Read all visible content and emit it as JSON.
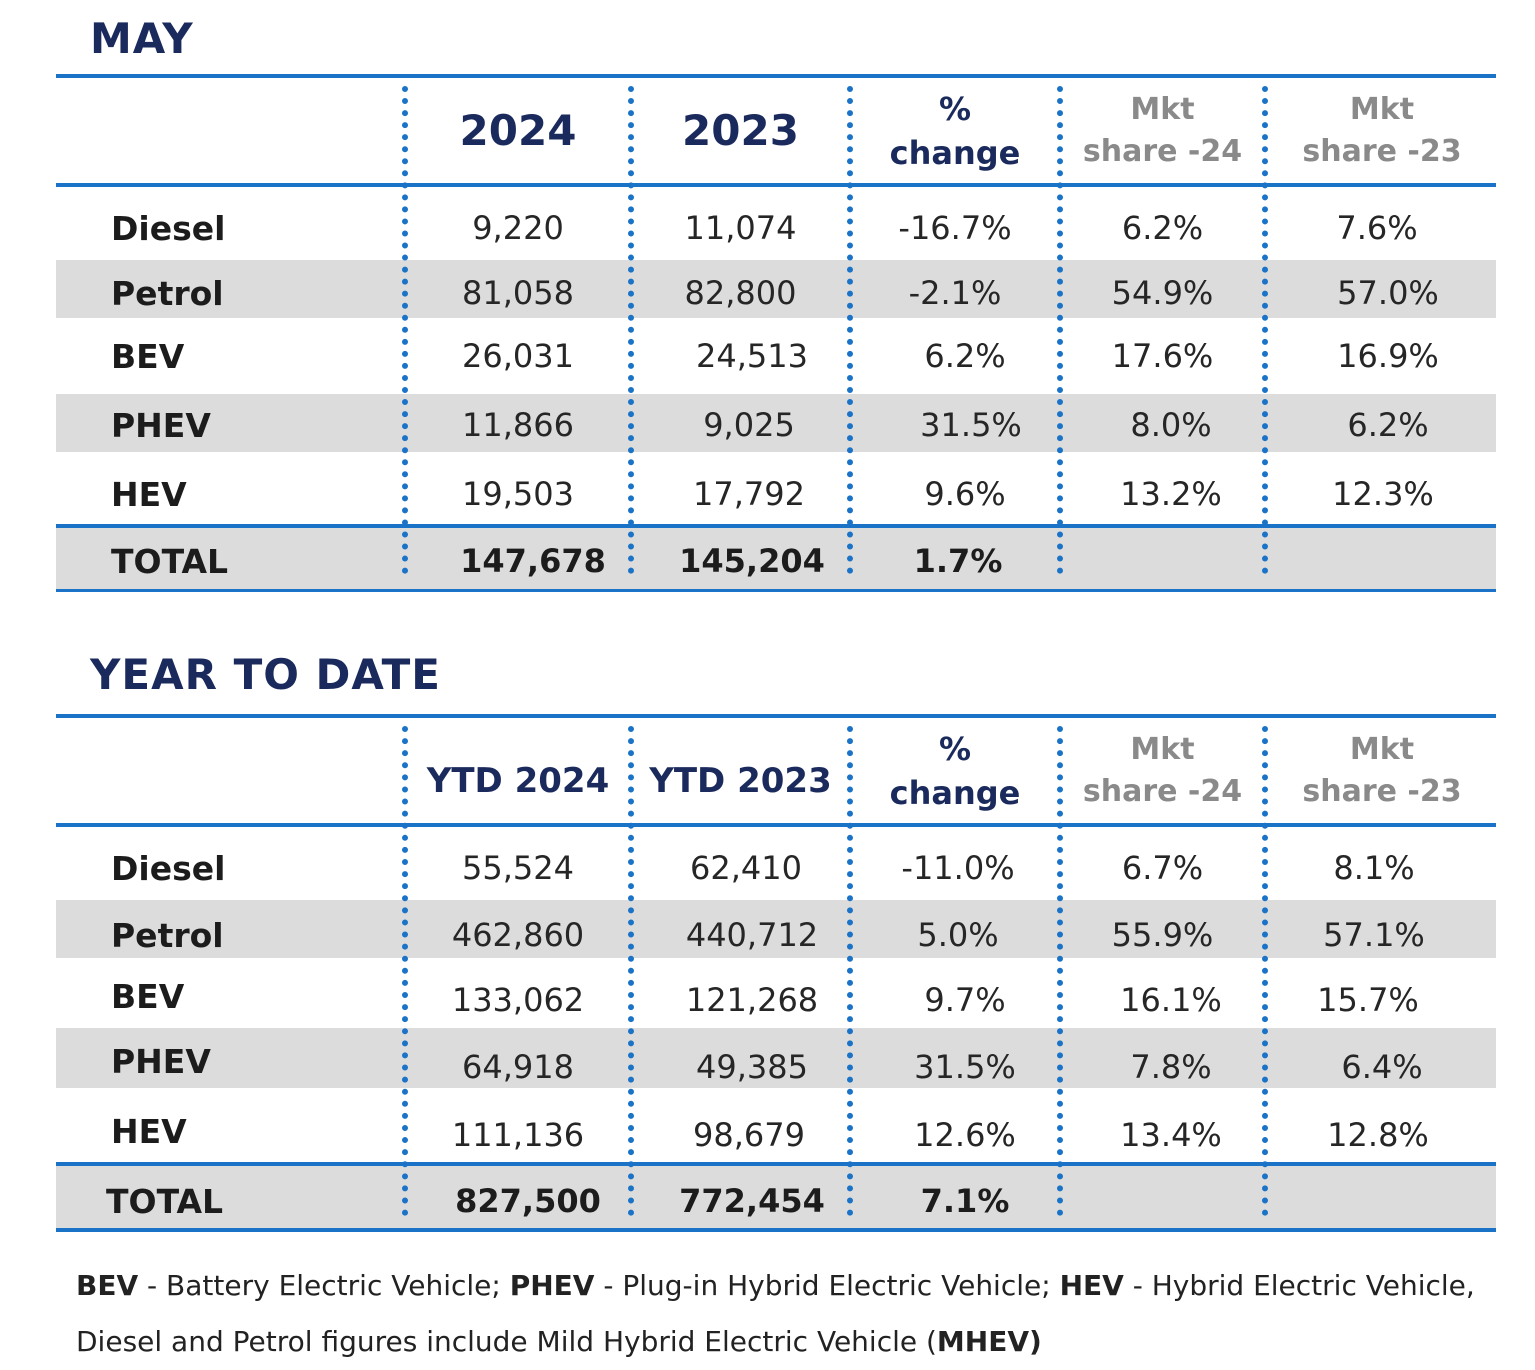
{
  "sections": [
    {
      "title": "MAY",
      "headers": {
        "col1": "2024",
        "col2": "2023",
        "pct_line1": "%",
        "pct_line2": "change",
        "mkt24_line1": "Mkt",
        "mkt24_line2": "share -24",
        "mkt23_line1": "Mkt",
        "mkt23_line2": "share -23"
      },
      "rows": [
        {
          "label": "Diesel",
          "v2024": "9,220",
          "v2023": "11,074",
          "change": "-16.7%",
          "share24": "6.2%",
          "share23": "7.6%"
        },
        {
          "label": "Petrol",
          "v2024": "81,058",
          "v2023": "82,800",
          "change": "-2.1%",
          "share24": "54.9%",
          "share23": "57.0%"
        },
        {
          "label": "BEV",
          "v2024": "26,031",
          "v2023": "24,513",
          "change": "6.2%",
          "share24": "17.6%",
          "share23": "16.9%"
        },
        {
          "label": "PHEV",
          "v2024": "11,866",
          "v2023": "9,025",
          "change": "31.5%",
          "share24": "8.0%",
          "share23": "6.2%"
        },
        {
          "label": "HEV",
          "v2024": "19,503",
          "v2023": "17,792",
          "change": "9.6%",
          "share24": "13.2%",
          "share23": "12.3%"
        }
      ],
      "total": {
        "label": "TOTAL",
        "v2024": "147,678",
        "v2023": "145,204",
        "change": "1.7%"
      }
    },
    {
      "title": "YEAR TO DATE",
      "headers": {
        "col1": "YTD 2024",
        "col2": "YTD 2023",
        "pct_line1": "%",
        "pct_line2": "change",
        "mkt24_line1": "Mkt",
        "mkt24_line2": "share -24",
        "mkt23_line1": "Mkt",
        "mkt23_line2": "share -23"
      },
      "rows": [
        {
          "label": "Diesel",
          "v2024": "55,524",
          "v2023": "62,410",
          "change": "-11.0%",
          "share24": "6.7%",
          "share23": "8.1%"
        },
        {
          "label": "Petrol",
          "v2024": "462,860",
          "v2023": "440,712",
          "change": "5.0%",
          "share24": "55.9%",
          "share23": "57.1%"
        },
        {
          "label": "BEV",
          "v2024": "133,062",
          "v2023": "121,268",
          "change": "9.7%",
          "share24": "16.1%",
          "share23": "15.7%"
        },
        {
          "label": "PHEV",
          "v2024": "64,918",
          "v2023": "49,385",
          "change": "31.5%",
          "share24": "7.8%",
          "share23": "6.4%"
        },
        {
          "label": "HEV",
          "v2024": "111,136",
          "v2023": "98,679",
          "change": "12.6%",
          "share24": "13.4%",
          "share23": "12.8%"
        }
      ],
      "total": {
        "label": "TOTAL",
        "v2024": "827,500",
        "v2023": "772,454",
        "change": "7.1%"
      }
    }
  ],
  "footnote": {
    "bev_abbr": "BEV",
    "bev_text": " - Battery Electric Vehicle; ",
    "phev_abbr": "PHEV",
    "phev_text": " - Plug-in Hybrid Electric Vehicle; ",
    "hev_abbr": "HEV",
    "hev_text": " - Hybrid Electric Vehicle,",
    "line2_text": "Diesel and Petrol figures include Mild Hybrid Electric Vehicle (",
    "mhev_abbr": "MHEV)"
  },
  "colors": {
    "accent_blue": "#1a73c6",
    "title_navy": "#1b2a5c",
    "band_grey": "#dcdcdc",
    "header_grey_text": "#8a8a8a"
  }
}
